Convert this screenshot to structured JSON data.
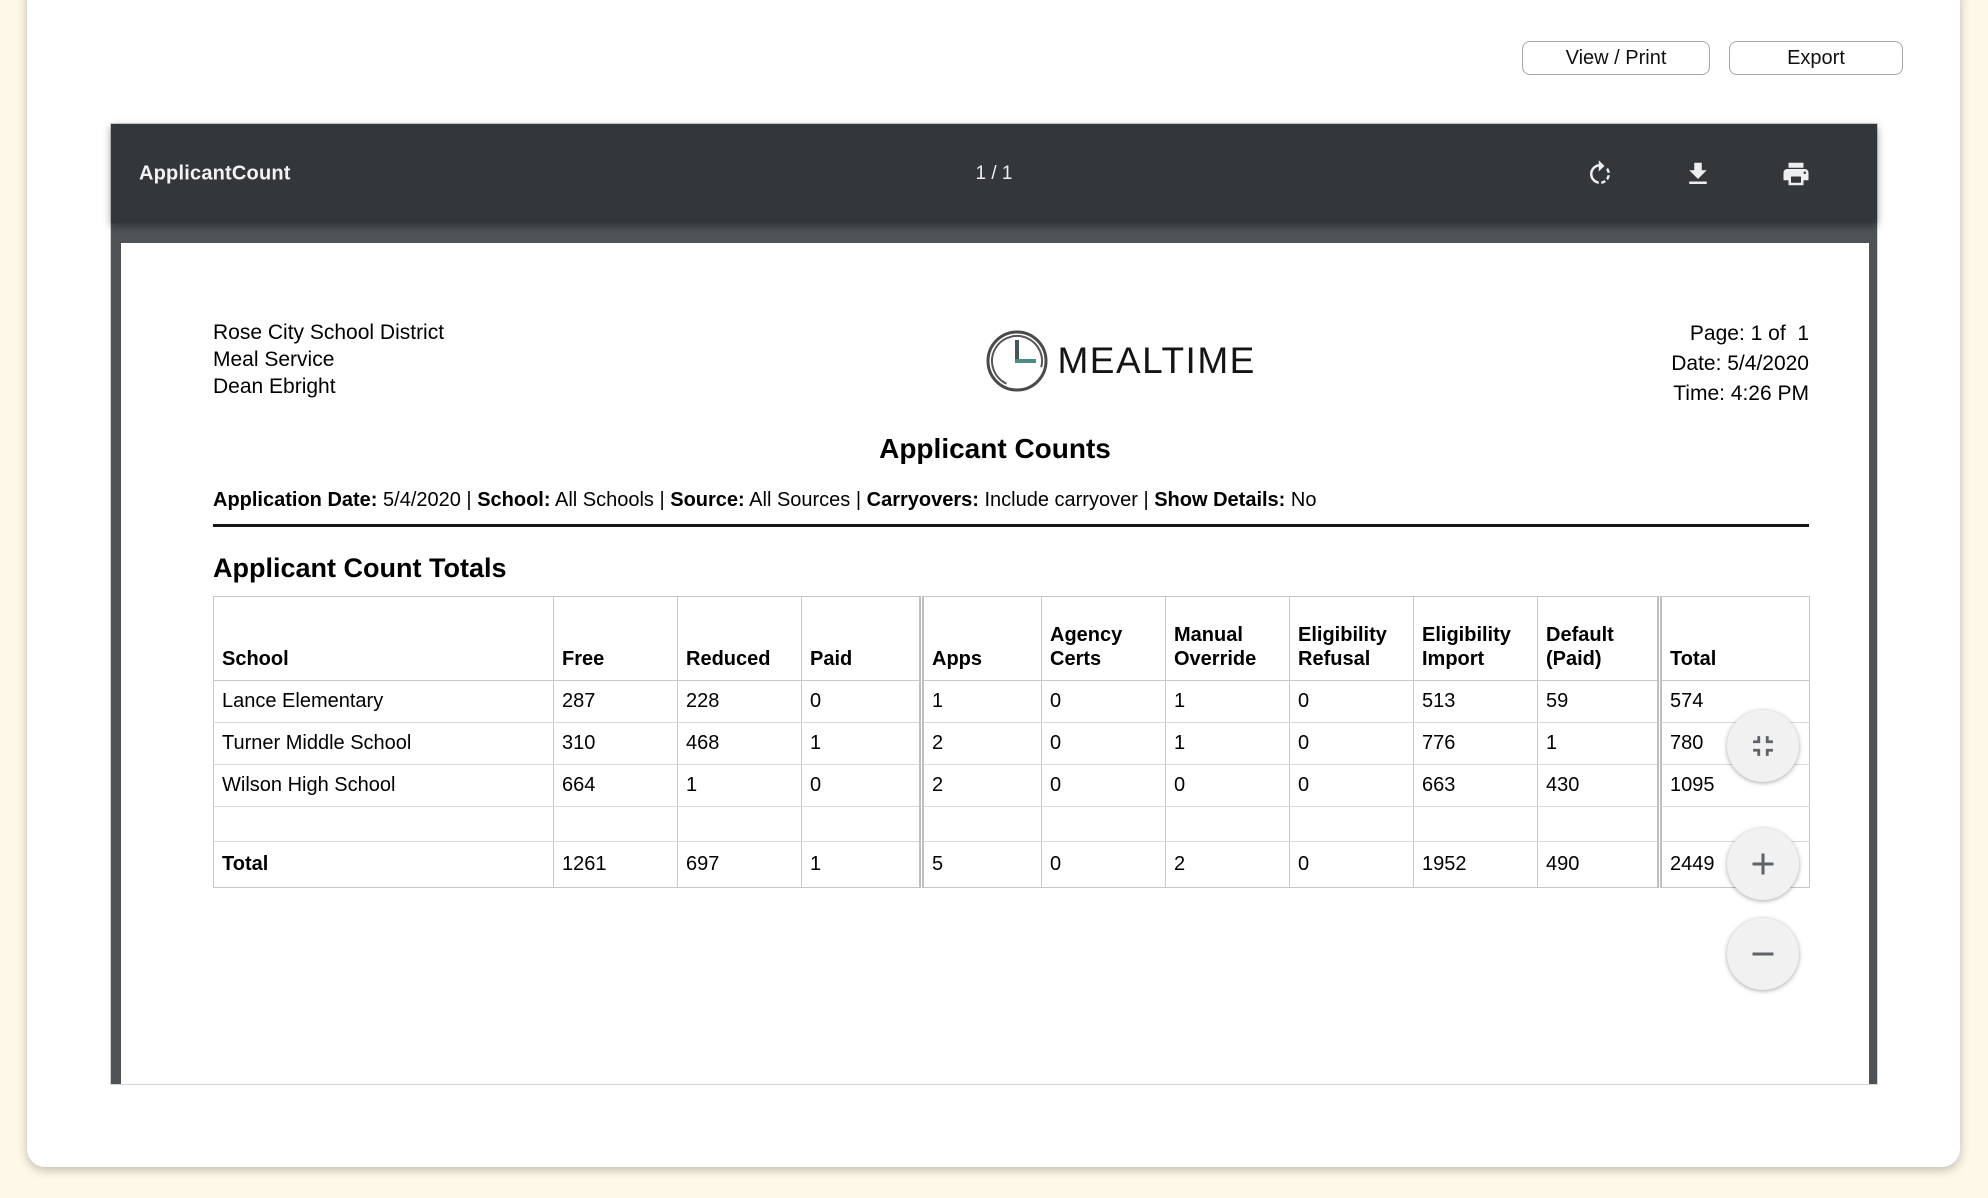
{
  "colors": {
    "page_background": "#fdf8e8",
    "toolbar": "#33373a",
    "viewer_background": "#4f5356",
    "logo_teal": "#4c8b85",
    "table_border": "#c9c9c9"
  },
  "actions": {
    "view_print": "View / Print",
    "export": "Export"
  },
  "pdf_viewer": {
    "title": "ApplicantCount",
    "page_indicator": "1 / 1",
    "toolbar_icons": [
      "rotate-icon",
      "download-icon",
      "print-icon"
    ],
    "zoom_controls": [
      "fit-to-page-icon",
      "zoom-in-icon",
      "zoom-out-icon"
    ]
  },
  "report": {
    "district": "Rose City School District",
    "department": "Meal Service",
    "user": "Dean Ebright",
    "logo_text": "MEALTIME",
    "page_info": "Page: 1 of  1",
    "date_info": "Date: 5/4/2020",
    "time_info": "Time: 4:26 PM",
    "title": "Applicant Counts",
    "filters": [
      {
        "label": "Application Date:",
        "value": "5/4/2020"
      },
      {
        "label": "School:",
        "value": "All Schools"
      },
      {
        "label": "Source:",
        "value": "All Sources"
      },
      {
        "label": "Carryovers:",
        "value": "Include carryover"
      },
      {
        "label": "Show Details:",
        "value": "No"
      }
    ],
    "filter_separator": " | ",
    "section_title": "Applicant Count Totals",
    "table": {
      "columns": [
        "School",
        "Free",
        "Reduced",
        "Paid",
        "Apps",
        "Agency Certs",
        "Manual Override",
        "Eligibility Refusal",
        "Eligibility Import",
        "Default (Paid)",
        "Total"
      ],
      "rows": [
        {
          "school": "Lance Elementary",
          "values": [
            287,
            228,
            0,
            1,
            0,
            1,
            0,
            513,
            59,
            574
          ]
        },
        {
          "school": "Turner Middle School",
          "values": [
            310,
            468,
            1,
            2,
            0,
            1,
            0,
            776,
            1,
            780
          ]
        },
        {
          "school": "Wilson High School",
          "values": [
            664,
            1,
            0,
            2,
            0,
            0,
            0,
            663,
            430,
            1095
          ]
        }
      ],
      "total_row": {
        "school": "Total",
        "values": [
          1261,
          697,
          1,
          5,
          0,
          2,
          0,
          1952,
          490,
          2449
        ]
      }
    }
  }
}
